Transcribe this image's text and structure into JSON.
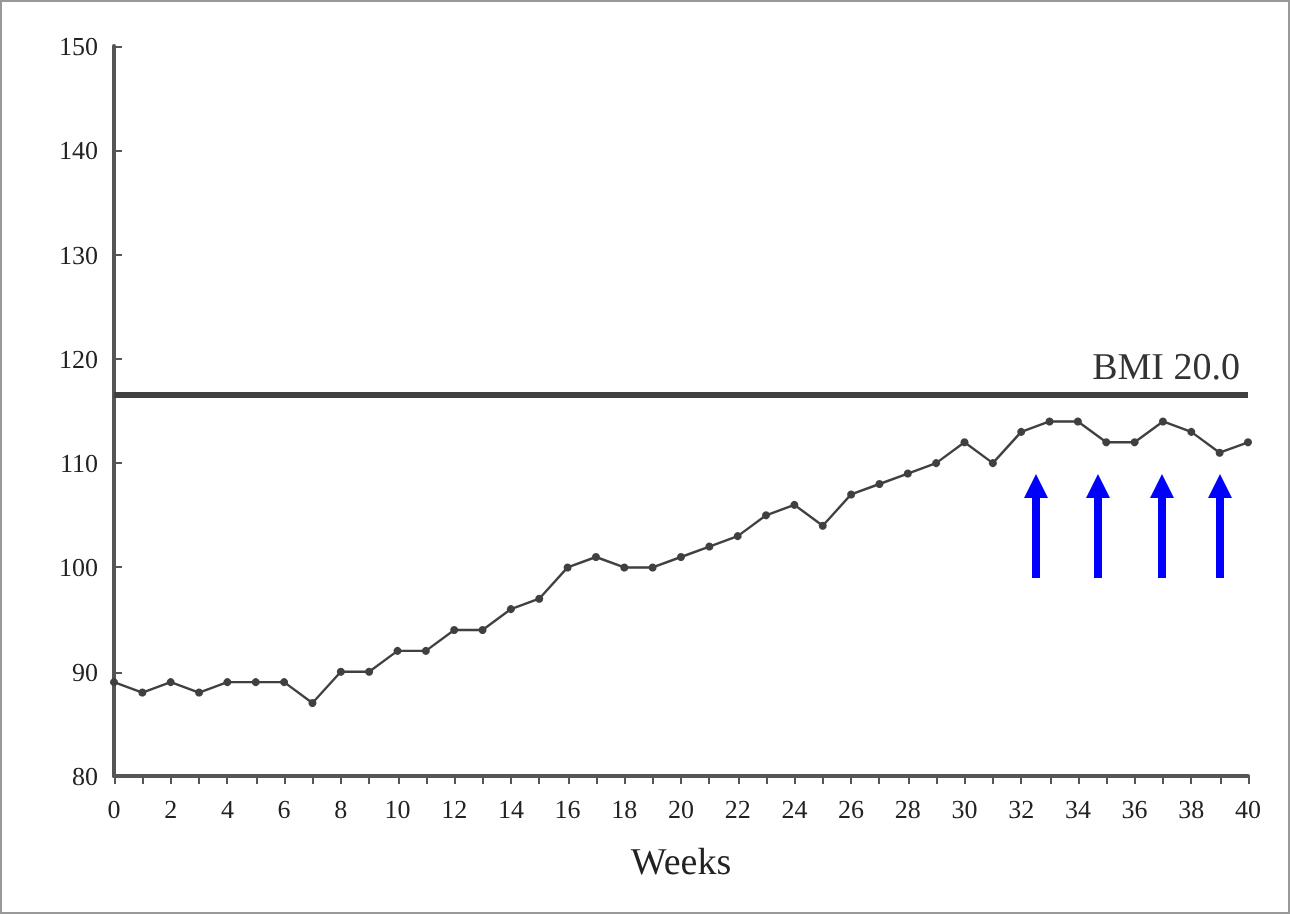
{
  "chart_data": {
    "type": "line",
    "xlabel": "Weeks",
    "x": [
      0,
      1,
      2,
      3,
      4,
      5,
      6,
      7,
      8,
      9,
      10,
      11,
      12,
      13,
      14,
      15,
      16,
      17,
      18,
      19,
      20,
      21,
      22,
      23,
      24,
      25,
      26,
      27,
      28,
      29,
      30,
      31,
      32,
      33,
      34,
      35,
      36,
      37,
      38,
      39,
      40
    ],
    "series": [
      {
        "color": "#404040",
        "values": [
          89,
          88,
          89,
          88,
          89,
          89,
          89,
          87,
          90,
          90,
          92,
          92,
          94,
          94,
          96,
          97,
          100,
          101,
          100,
          100,
          101,
          102,
          103,
          105,
          106,
          104,
          107,
          108,
          109,
          110,
          112,
          110,
          113,
          114,
          114,
          112,
          112,
          114,
          113,
          111,
          112
        ]
      }
    ],
    "xlim": [
      0,
      40
    ],
    "xticks": [
      0,
      2,
      4,
      6,
      8,
      10,
      12,
      14,
      16,
      18,
      20,
      22,
      24,
      26,
      28,
      30,
      32,
      34,
      36,
      38,
      40
    ],
    "ylim": [
      80,
      150
    ],
    "yticks": [
      80,
      90,
      100,
      110,
      120,
      130,
      140,
      150
    ],
    "ref_lines": [
      {
        "axis": "y",
        "value": 116.5,
        "label": "BMI 20.0",
        "color": "#404040"
      }
    ],
    "marker": "circle",
    "grid": false
  }
}
